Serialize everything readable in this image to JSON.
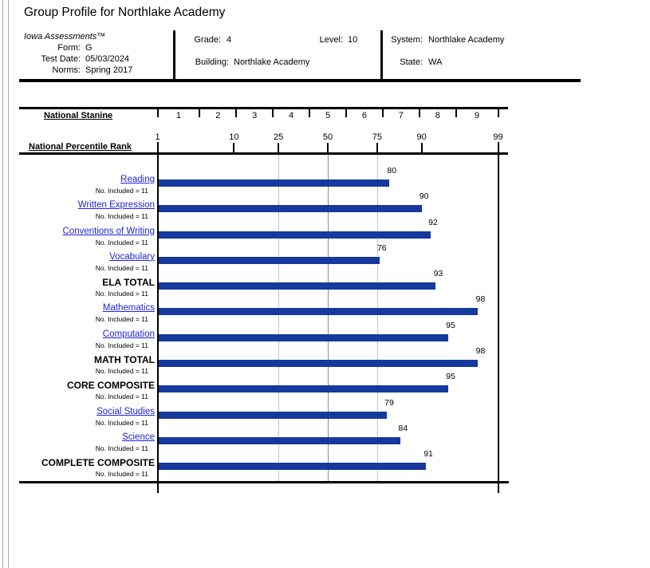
{
  "page": {
    "title": "Group Profile for Northlake Academy"
  },
  "header": {
    "product": "Iowa Assessments™",
    "fields_left": [
      {
        "label": "Form:",
        "value": "G"
      },
      {
        "label": "Test Date:",
        "value": "05/03/2024"
      },
      {
        "label": "Norms:",
        "value": "Spring 2017"
      }
    ],
    "grade_label": "Grade:",
    "grade_value": "4",
    "level_label": "Level:",
    "level_value": "10",
    "building_label": "Building:",
    "building_value": "Northlake Academy",
    "system_label": "System:",
    "system_value": "Northlake Academy",
    "state_label": "State:",
    "state_value": "WA"
  },
  "chart_data": {
    "type": "bar",
    "orientation": "horizontal",
    "scale": "normal-probability",
    "axis_top_label": "National Stanine",
    "axis_label": "National Percentile Rank",
    "stanine_labels": [
      "1",
      "2",
      "3",
      "4",
      "5",
      "6",
      "7",
      "8",
      "9"
    ],
    "percentile_ticks": [
      1,
      10,
      25,
      50,
      75,
      90,
      99
    ],
    "xlim": [
      1,
      99
    ],
    "gridlines": {
      "dotted": [
        25,
        75
      ],
      "solid": [
        50
      ]
    },
    "categories": [
      "Reading",
      "Written Expression",
      "Conventions of Writing",
      "Vocabulary",
      "ELA TOTAL",
      "Mathematics",
      "Computation",
      "MATH TOTAL",
      "CORE COMPOSITE",
      "Social Studies",
      "Science",
      "COMPLETE COMPOSITE"
    ],
    "values": [
      80,
      90,
      92,
      76,
      93,
      98,
      95,
      98,
      95,
      79,
      84,
      91
    ],
    "is_total": [
      false,
      false,
      false,
      false,
      true,
      false,
      false,
      true,
      true,
      false,
      false,
      true
    ],
    "n_label_prefix": "No. Included = ",
    "n_included": [
      11,
      11,
      11,
      11,
      11,
      11,
      11,
      11,
      11,
      11,
      11,
      11
    ],
    "bar_color": "#15399d",
    "link_color": "#2222dd"
  }
}
